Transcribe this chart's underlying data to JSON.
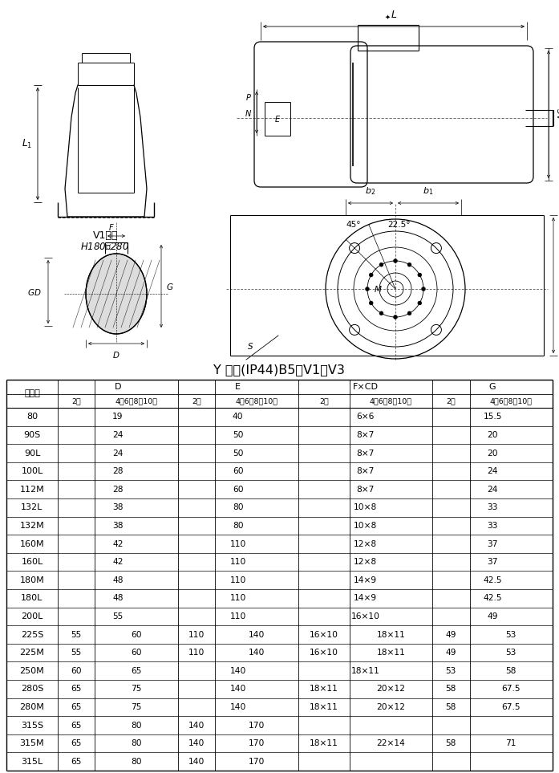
{
  "title": "Y 系列(IP44)B5、V1、V3",
  "col_labels_1": [
    "中心高",
    "D",
    "E",
    "F×CD",
    "G"
  ],
  "col_labels_2": [
    "2极",
    "4、6、8、10极",
    "2极",
    "4、6、8、10极",
    "2极",
    "4、6、8、10极",
    "2极",
    "4、6、8、10极"
  ],
  "rows": [
    [
      "　　80",
      "",
      "19",
      "",
      "40",
      "",
      "6×6",
      "",
      "15.5"
    ],
    [
      "　90S",
      "",
      "24",
      "",
      "50",
      "",
      "8×7",
      "",
      "20"
    ],
    [
      "　90L",
      "",
      "24",
      "",
      "50",
      "",
      "8×7",
      "",
      "20"
    ],
    [
      "100L",
      "",
      "28",
      "",
      "60",
      "",
      "8×7",
      "",
      "24"
    ],
    [
      "112M",
      "",
      "28",
      "",
      "60",
      "",
      "8×7",
      "",
      "24"
    ],
    [
      "132L",
      "",
      "38",
      "",
      "80",
      "",
      "10×8",
      "",
      "33"
    ],
    [
      "132M",
      "",
      "38",
      "",
      "80",
      "",
      "10×8",
      "",
      "33"
    ],
    [
      "160M",
      "",
      "42",
      "",
      "110",
      "",
      "12×8",
      "",
      "37"
    ],
    [
      "160L",
      "",
      "42",
      "",
      "110",
      "",
      "12×8",
      "",
      "37"
    ],
    [
      "180M",
      "",
      "48",
      "",
      "110",
      "",
      "14×9",
      "",
      "42.5"
    ],
    [
      "180L",
      "",
      "48",
      "",
      "110",
      "",
      "14×9",
      "",
      "42.5"
    ],
    [
      "200L",
      "",
      "55",
      "",
      "110",
      "",
      "16×10",
      "",
      "49"
    ],
    [
      "225S",
      "55",
      "60",
      "110",
      "140",
      "16×10",
      "18×11",
      "49",
      "53"
    ],
    [
      "225M",
      "55",
      "60",
      "110",
      "140",
      "16×10",
      "18×11",
      "49",
      "53"
    ],
    [
      "250M",
      "60",
      "65",
      "",
      "140",
      "",
      "18×11",
      "53",
      "58"
    ],
    [
      "280S",
      "65",
      "75",
      "",
      "140",
      "18×11",
      "20×12",
      "58",
      "67.5"
    ],
    [
      "280M",
      "65",
      "75",
      "",
      "140",
      "18×11",
      "20×12",
      "58",
      "67.5"
    ],
    [
      "315S",
      "65",
      "80",
      "140",
      "170",
      "",
      "",
      "",
      ""
    ],
    [
      "315M",
      "65",
      "80",
      "140",
      "170",
      "18×11",
      "22×14",
      "58",
      "71"
    ],
    [
      "315L",
      "65",
      "80",
      "140",
      "170",
      "",
      "",
      "",
      ""
    ]
  ],
  "bg_color": "#ffffff"
}
